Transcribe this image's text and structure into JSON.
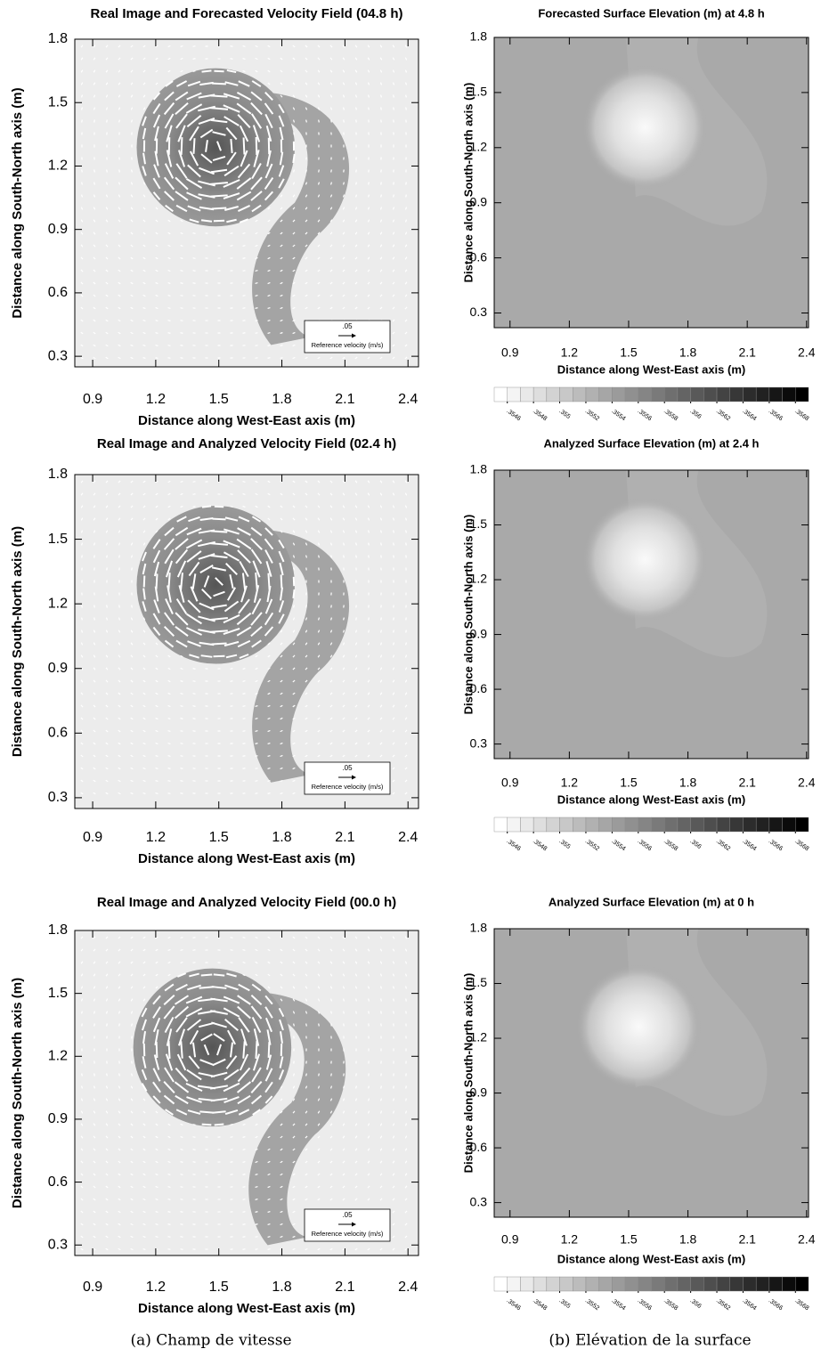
{
  "chart_data": [
    {
      "type": "quiver",
      "title": "Real Image and Forecasted Velocity Field (04.8 h)",
      "xlabel": "Distance along West-East axis (m)",
      "ylabel": "Distance along South-North axis (m)",
      "xlim": [
        0.815,
        2.45
      ],
      "ylim": [
        0.25,
        1.8
      ],
      "xticks": [
        0.9,
        1.2,
        1.5,
        1.8,
        2.1,
        2.4
      ],
      "yticks": [
        0.3,
        0.6,
        0.9,
        1.2,
        1.5,
        1.8
      ],
      "reference_vector": {
        "value": 0.05,
        "label": ".05"
      },
      "reference_label": "Reference velocity (m/s)"
    },
    {
      "type": "quiver",
      "title": "Real Image and Analyzed Velocity Field (02.4 h)",
      "xlabel": "Distance along West-East axis (m)",
      "ylabel": "Distance along South-North axis (m)",
      "xlim": [
        0.815,
        2.45
      ],
      "ylim": [
        0.25,
        1.8
      ],
      "xticks": [
        0.9,
        1.2,
        1.5,
        1.8,
        2.1,
        2.4
      ],
      "yticks": [
        0.3,
        0.6,
        0.9,
        1.2,
        1.5,
        1.8
      ],
      "reference_vector": {
        "value": 0.05,
        "label": ".05"
      },
      "reference_label": "Reference velocity (m/s)"
    },
    {
      "type": "quiver",
      "title": "Real Image and Analyzed Velocity Field (00.0 h)",
      "xlabel": "Distance along West-East axis (m)",
      "ylabel": "Distance along South-North axis (m)",
      "xlim": [
        0.815,
        2.45
      ],
      "ylim": [
        0.25,
        1.8
      ],
      "xticks": [
        0.9,
        1.2,
        1.5,
        1.8,
        2.1,
        2.4
      ],
      "yticks": [
        0.3,
        0.6,
        0.9,
        1.2,
        1.5,
        1.8
      ],
      "reference_vector": {
        "value": 0.05,
        "label": ".05"
      },
      "reference_label": "Reference velocity (m/s)"
    },
    {
      "type": "contour",
      "title": "Forecasted Surface Elevation (m) at 4.8 h",
      "xlabel": "Distance along West-East axis (m)",
      "ylabel": "Distance along South-North axis (m)",
      "xlim": [
        0.82,
        2.41
      ],
      "ylim": [
        0.22,
        1.8
      ],
      "xticks": [
        0.9,
        1.2,
        1.5,
        1.8,
        2.1,
        2.4
      ],
      "yticks": [
        0.3,
        0.6,
        0.9,
        1.2,
        1.5,
        1.8
      ],
      "colorbar_ticks": [
        {
          "value": 0.3546,
          "label": ".3546"
        },
        {
          "value": 0.3548,
          "label": ".3548"
        },
        {
          "value": 0.355,
          "label": ".355"
        },
        {
          "value": 0.3552,
          "label": ".3552"
        },
        {
          "value": 0.3554,
          "label": ".3554"
        },
        {
          "value": 0.3556,
          "label": ".3556"
        },
        {
          "value": 0.3558,
          "label": ".3558"
        },
        {
          "value": 0.356,
          "label": ".356"
        },
        {
          "value": 0.3562,
          "label": ".3562"
        },
        {
          "value": 0.3564,
          "label": ".3564"
        },
        {
          "value": 0.3566,
          "label": ".3566"
        },
        {
          "value": 0.3568,
          "label": ".3568"
        }
      ]
    },
    {
      "type": "contour",
      "title": "Analyzed Surface Elevation (m) at 2.4 h",
      "xlabel": "Distance along West-East axis (m)",
      "ylabel": "Distance along South-North axis (m)",
      "xlim": [
        0.82,
        2.41
      ],
      "ylim": [
        0.22,
        1.8
      ],
      "xticks": [
        0.9,
        1.2,
        1.5,
        1.8,
        2.1,
        2.4
      ],
      "yticks": [
        0.3,
        0.6,
        0.9,
        1.2,
        1.5,
        1.8
      ],
      "colorbar_ticks": [
        {
          "value": 0.3546,
          "label": ".3546"
        },
        {
          "value": 0.3548,
          "label": ".3548"
        },
        {
          "value": 0.355,
          "label": ".355"
        },
        {
          "value": 0.3552,
          "label": ".3552"
        },
        {
          "value": 0.3554,
          "label": ".3554"
        },
        {
          "value": 0.3556,
          "label": ".3556"
        },
        {
          "value": 0.3558,
          "label": ".3558"
        },
        {
          "value": 0.356,
          "label": ".356"
        },
        {
          "value": 0.3562,
          "label": ".3562"
        },
        {
          "value": 0.3564,
          "label": ".3564"
        },
        {
          "value": 0.3566,
          "label": ".3566"
        },
        {
          "value": 0.3568,
          "label": ".3568"
        }
      ]
    },
    {
      "type": "contour",
      "title": "Analyzed Surface Elevation (m) at 0 h",
      "xlabel": "Distance along West-East axis (m)",
      "ylabel": "Distance along South-North axis (m)",
      "xlim": [
        0.82,
        2.41
      ],
      "ylim": [
        0.22,
        1.8
      ],
      "xticks": [
        0.9,
        1.2,
        1.5,
        1.8,
        2.1,
        2.4
      ],
      "yticks": [
        0.3,
        0.6,
        0.9,
        1.2,
        1.5,
        1.8
      ],
      "colorbar_ticks": [
        {
          "value": 0.3546,
          "label": ".3546"
        },
        {
          "value": 0.3548,
          "label": ".3548"
        },
        {
          "value": 0.355,
          "label": ".355"
        },
        {
          "value": 0.3552,
          "label": ".3552"
        },
        {
          "value": 0.3554,
          "label": ".3554"
        },
        {
          "value": 0.3556,
          "label": ".3556"
        },
        {
          "value": 0.3558,
          "label": ".3558"
        },
        {
          "value": 0.356,
          "label": ".356"
        },
        {
          "value": 0.3562,
          "label": ".3562"
        },
        {
          "value": 0.3564,
          "label": ".3564"
        },
        {
          "value": 0.3566,
          "label": ".3566"
        },
        {
          "value": 0.3568,
          "label": ".3568"
        }
      ]
    }
  ],
  "captions": [
    "(a) Champ de vitesse",
    "(b) Elévation de la surface"
  ]
}
